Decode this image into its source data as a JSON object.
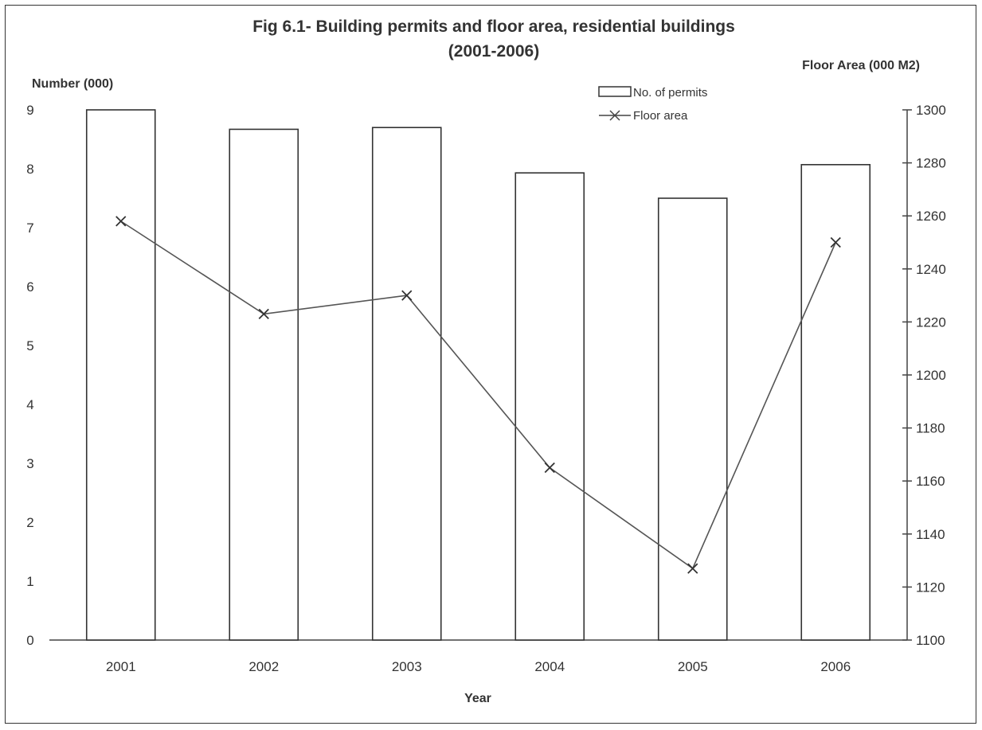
{
  "chart_data": {
    "type": "bar",
    "title": "Fig 6.1- Building permits and floor area, residential buildings",
    "subtitle": "(2001-2006)",
    "xlabel": "Year",
    "ylabel": "Number (000)",
    "y2label": "Floor Area (000 M2)",
    "categories": [
      "2001",
      "2002",
      "2003",
      "2004",
      "2005",
      "2006"
    ],
    "ylim": [
      0,
      9
    ],
    "y2lim": [
      1100,
      1300
    ],
    "yticks": [
      "0",
      "1",
      "2",
      "3",
      "4",
      "5",
      "6",
      "7",
      "8",
      "9"
    ],
    "y2ticks": [
      "1100",
      "1120",
      "1140",
      "1160",
      "1180",
      "1200",
      "1220",
      "1240",
      "1260",
      "1280",
      "1300"
    ],
    "series": [
      {
        "name": "No. of permits",
        "type": "bar",
        "axis": "left",
        "values": [
          9.0,
          8.67,
          8.7,
          7.93,
          7.5,
          8.07
        ]
      },
      {
        "name": "Floor area",
        "type": "line",
        "axis": "right",
        "marker": "x",
        "values": [
          1258,
          1223,
          1230,
          1165,
          1127,
          1250
        ]
      }
    ],
    "legend_position": "top-right",
    "grid": false
  }
}
